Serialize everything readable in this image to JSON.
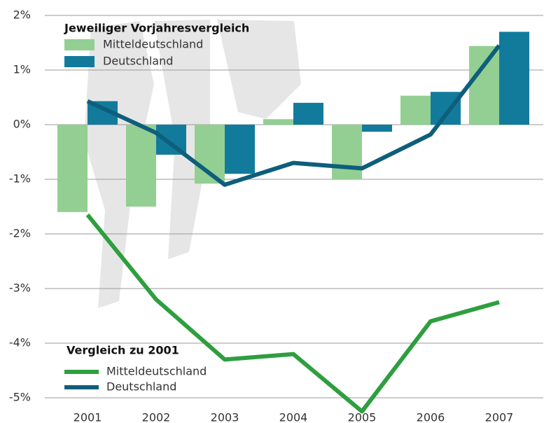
{
  "chart_data": {
    "type": "combo",
    "categories": [
      "2001",
      "2002",
      "2003",
      "2004",
      "2005",
      "2006",
      "2007"
    ],
    "bar_legend_title": "Jeweiliger Vorjahresvergleich",
    "line_legend_title": "Vergleich zu 2001",
    "series": [
      {
        "name": "Mitteldeutschland",
        "type": "bar",
        "color": "#93cf93",
        "values": [
          -1.6,
          -1.5,
          -1.08,
          0.1,
          -1.0,
          0.53,
          1.44
        ]
      },
      {
        "name": "Deutschland",
        "type": "bar",
        "color": "#127b9c",
        "values": [
          0.43,
          -0.55,
          -0.9,
          0.4,
          -0.13,
          0.6,
          1.7
        ]
      },
      {
        "name": "Mitteldeutschland",
        "type": "line",
        "color": "#2f9e3f",
        "values": [
          -1.65,
          -3.2,
          -4.3,
          -4.2,
          -5.25,
          -3.6,
          -3.25
        ]
      },
      {
        "name": "Deutschland",
        "type": "line",
        "color": "#0d5f7b",
        "values": [
          0.43,
          -0.15,
          -1.1,
          -0.7,
          -0.8,
          -0.18,
          1.45
        ]
      }
    ],
    "ylim": [
      -5,
      2
    ],
    "yticks": [
      {
        "value": 2,
        "label": "2%"
      },
      {
        "value": 1,
        "label": "1%"
      },
      {
        "value": 0,
        "label": "0%"
      },
      {
        "value": -1,
        "label": "-1%"
      },
      {
        "value": -2,
        "label": "-2%"
      },
      {
        "value": -3,
        "label": "-3%"
      },
      {
        "value": -4,
        "label": "-4%"
      },
      {
        "value": -5,
        "label": "-5%"
      }
    ],
    "grid": true
  }
}
